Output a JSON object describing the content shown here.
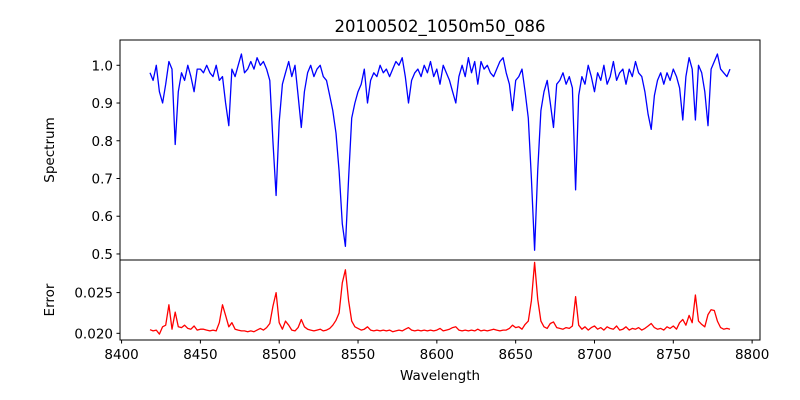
{
  "chart_data": [
    {
      "type": "line",
      "title": "20100502_1050m50_086",
      "xlabel": "",
      "ylabel": "Spectrum",
      "xlim": [
        8399,
        8805
      ],
      "ylim": [
        0.484,
        1.067
      ],
      "xticks": [
        8400,
        8450,
        8500,
        8550,
        8600,
        8650,
        8700,
        8750,
        8800
      ],
      "yticks": [
        0.5,
        0.6,
        0.7,
        0.8,
        0.9,
        1.0
      ],
      "ytick_labels": [
        "0.5",
        "0.6",
        "0.7",
        "0.8",
        "0.9",
        "1.0"
      ],
      "grid": false,
      "series": [
        {
          "name": "Spectrum",
          "color": "#0000ff",
          "x_start": 8418,
          "x_step": 2,
          "values": [
            0.98,
            0.96,
            1.0,
            0.93,
            0.9,
            0.95,
            1.01,
            0.99,
            0.79,
            0.93,
            0.98,
            0.96,
            1.0,
            0.97,
            0.93,
            0.99,
            0.99,
            0.98,
            1.0,
            0.98,
            0.97,
            1.0,
            0.96,
            0.97,
            0.9,
            0.84,
            0.99,
            0.97,
            1.0,
            1.03,
            0.98,
            0.99,
            1.01,
            0.99,
            1.02,
            1.0,
            1.01,
            0.99,
            0.96,
            0.8,
            0.655,
            0.85,
            0.95,
            0.98,
            1.01,
            0.97,
            1.0,
            0.92,
            0.835,
            0.93,
            0.98,
            1.0,
            0.97,
            0.99,
            1.0,
            0.97,
            0.96,
            0.92,
            0.88,
            0.82,
            0.72,
            0.58,
            0.52,
            0.7,
            0.86,
            0.9,
            0.93,
            0.95,
            0.99,
            0.9,
            0.96,
            0.98,
            0.97,
            1.0,
            0.98,
            0.99,
            0.97,
            0.99,
            1.01,
            1.0,
            1.02,
            0.97,
            0.9,
            0.96,
            0.98,
            0.99,
            0.97,
            1.0,
            0.98,
            1.01,
            0.97,
            0.99,
            0.95,
            1.0,
            0.98,
            0.96,
            0.93,
            0.9,
            0.97,
            1.0,
            0.97,
            1.02,
            0.98,
            1.01,
            0.95,
            1.01,
            0.99,
            1.0,
            0.98,
            0.97,
            0.99,
            1.01,
            1.02,
            0.98,
            0.95,
            0.88,
            0.96,
            0.97,
            0.99,
            0.93,
            0.86,
            0.7,
            0.51,
            0.72,
            0.88,
            0.93,
            0.96,
            0.9,
            0.835,
            0.95,
            0.96,
            0.98,
            0.95,
            0.97,
            0.94,
            0.67,
            0.92,
            0.97,
            0.95,
            1.0,
            0.97,
            0.93,
            0.98,
            0.96,
            1.0,
            0.95,
            0.97,
            1.01,
            0.96,
            0.98,
            0.99,
            0.95,
            0.99,
            0.97,
            1.01,
            0.98,
            0.97,
            0.93,
            0.87,
            0.83,
            0.92,
            0.96,
            0.98,
            0.95,
            0.98,
            0.96,
            0.99,
            0.97,
            0.94,
            0.855,
            0.97,
            1.02,
            0.99,
            0.855,
            1.0,
            0.98,
            0.93,
            0.84,
            0.99,
            1.01,
            1.03,
            0.99,
            0.98,
            0.97,
            0.99
          ]
        }
      ]
    },
    {
      "type": "line",
      "title": "",
      "xlabel": "Wavelength",
      "ylabel": "Error",
      "xlim": [
        8399,
        8805
      ],
      "ylim": [
        0.01918,
        0.029
      ],
      "xticks": [
        8400,
        8450,
        8500,
        8550,
        8600,
        8650,
        8700,
        8750,
        8800
      ],
      "xtick_labels": [
        "8400",
        "8450",
        "8500",
        "8550",
        "8600",
        "8650",
        "8700",
        "8750",
        "8800"
      ],
      "yticks": [
        0.02,
        0.025
      ],
      "ytick_labels": [
        "0.020",
        "0.025"
      ],
      "grid": false,
      "series": [
        {
          "name": "Error",
          "color": "#ff0000",
          "x_start": 8418,
          "x_step": 2,
          "values": [
            0.02045,
            0.0203,
            0.0204,
            0.0199,
            0.0208,
            0.021,
            0.0235,
            0.0205,
            0.0226,
            0.0208,
            0.0207,
            0.021,
            0.0206,
            0.0205,
            0.0209,
            0.0204,
            0.0205,
            0.0205,
            0.0204,
            0.0203,
            0.0204,
            0.0203,
            0.0213,
            0.0235,
            0.0222,
            0.0208,
            0.0213,
            0.0205,
            0.0204,
            0.0203,
            0.0203,
            0.0202,
            0.0203,
            0.0202,
            0.0204,
            0.0206,
            0.0204,
            0.0207,
            0.0212,
            0.0233,
            0.025,
            0.0213,
            0.0205,
            0.0215,
            0.021,
            0.0204,
            0.0203,
            0.0207,
            0.0217,
            0.0208,
            0.0205,
            0.0204,
            0.0203,
            0.0204,
            0.0205,
            0.0203,
            0.0204,
            0.0206,
            0.021,
            0.0216,
            0.0225,
            0.0262,
            0.0278,
            0.024,
            0.0215,
            0.0208,
            0.0206,
            0.0204,
            0.0205,
            0.0208,
            0.0204,
            0.0203,
            0.0204,
            0.0203,
            0.0204,
            0.0203,
            0.0204,
            0.0202,
            0.0203,
            0.0204,
            0.0203,
            0.0205,
            0.0207,
            0.0204,
            0.0203,
            0.0204,
            0.0203,
            0.0204,
            0.0203,
            0.0204,
            0.0203,
            0.0204,
            0.0206,
            0.0203,
            0.0204,
            0.0205,
            0.0207,
            0.0208,
            0.0204,
            0.0203,
            0.0204,
            0.0203,
            0.0204,
            0.0203,
            0.0205,
            0.0203,
            0.0204,
            0.0203,
            0.0204,
            0.0205,
            0.0204,
            0.0203,
            0.0204,
            0.0204,
            0.0206,
            0.021,
            0.0207,
            0.0208,
            0.0205,
            0.0211,
            0.0215,
            0.024,
            0.0287,
            0.0242,
            0.0215,
            0.0208,
            0.0206,
            0.0212,
            0.0214,
            0.0207,
            0.0206,
            0.0205,
            0.0207,
            0.0206,
            0.0209,
            0.0245,
            0.021,
            0.0205,
            0.0208,
            0.0204,
            0.0207,
            0.0209,
            0.0205,
            0.0207,
            0.0204,
            0.0208,
            0.0206,
            0.0205,
            0.0209,
            0.0204,
            0.0205,
            0.0208,
            0.0204,
            0.0206,
            0.0205,
            0.0207,
            0.0204,
            0.0206,
            0.0209,
            0.0212,
            0.0207,
            0.0205,
            0.0206,
            0.0204,
            0.0208,
            0.0206,
            0.0209,
            0.0205,
            0.0213,
            0.0217,
            0.021,
            0.0222,
            0.0213,
            0.0247,
            0.0215,
            0.0211,
            0.0208,
            0.0223,
            0.0229,
            0.0228,
            0.0215,
            0.0207,
            0.0205,
            0.0206,
            0.0205
          ]
        }
      ]
    }
  ]
}
